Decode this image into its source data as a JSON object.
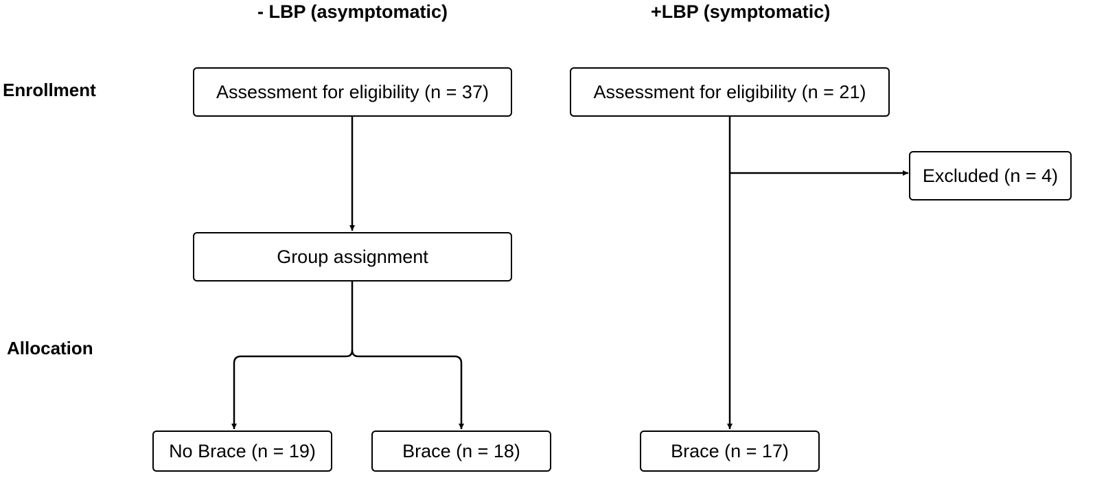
{
  "columns": {
    "left": "- LBP (asymptomatic)",
    "right": "+LBP (symptomatic)"
  },
  "stages": {
    "enrollment": "Enrollment",
    "allocation": "Allocation"
  },
  "boxes": {
    "left_assessment": "Assessment for eligibility (n = 37)",
    "right_assessment": "Assessment for eligibility (n = 21)",
    "excluded": "Excluded (n = 4)",
    "group_assignment": "Group assignment",
    "no_brace": "No Brace (n = 19)",
    "left_brace": "Brace (n = 18)",
    "right_brace": "Brace (n = 17)"
  }
}
